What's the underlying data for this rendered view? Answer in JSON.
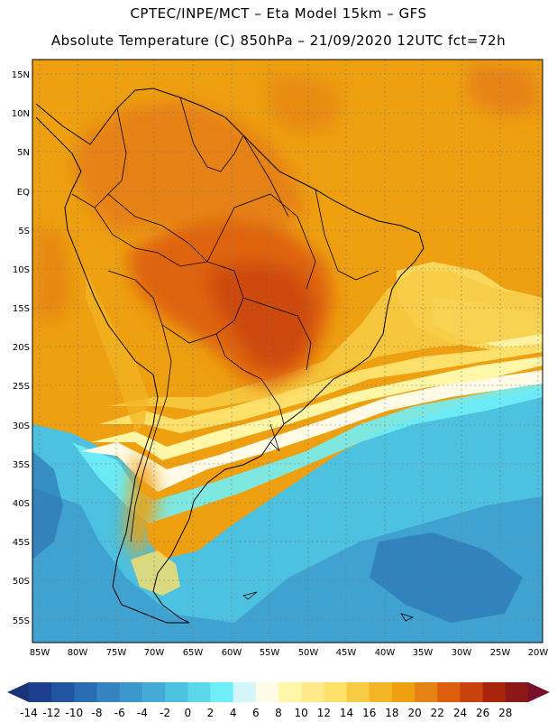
{
  "header": {
    "line1": "CPTEC/INPE/MCT –  Eta Model 15km – GFS",
    "line2": "Absolute Temperature (C) 850hPa – 21/09/2020 12UTC fct=72h"
  },
  "map": {
    "lat_labels": [
      "15N",
      "10N",
      "5N",
      "EQ",
      "5S",
      "10S",
      "15S",
      "20S",
      "25S",
      "30S",
      "35S",
      "40S",
      "45S",
      "50S",
      "55S"
    ],
    "lon_labels": [
      "85W",
      "80W",
      "75W",
      "70W",
      "65W",
      "60W",
      "55W",
      "50W",
      "45W",
      "40W",
      "35W",
      "30W",
      "25W",
      "20W"
    ]
  },
  "colorbar": {
    "labels": [
      "-14",
      "-12",
      "-10",
      "-8",
      "-6",
      "-4",
      "-2",
      "0",
      "2",
      "4",
      "6",
      "8",
      "10",
      "12",
      "14",
      "16",
      "18",
      "20",
      "22",
      "24",
      "26",
      "28"
    ],
    "colors": [
      "#1c3f8e",
      "#2255a0",
      "#2a6cb0",
      "#3583c0",
      "#3c97cc",
      "#43abd6",
      "#4cc1e0",
      "#5bd6ea",
      "#70eef7",
      "#d4f6fb",
      "#fffbe6",
      "#fff6a8",
      "#ffe98a",
      "#fde06a",
      "#f7cc44",
      "#f2b524",
      "#eea011",
      "#e68114",
      "#de5f0b",
      "#c8420b",
      "#a8250b",
      "#8b1717"
    ]
  }
}
